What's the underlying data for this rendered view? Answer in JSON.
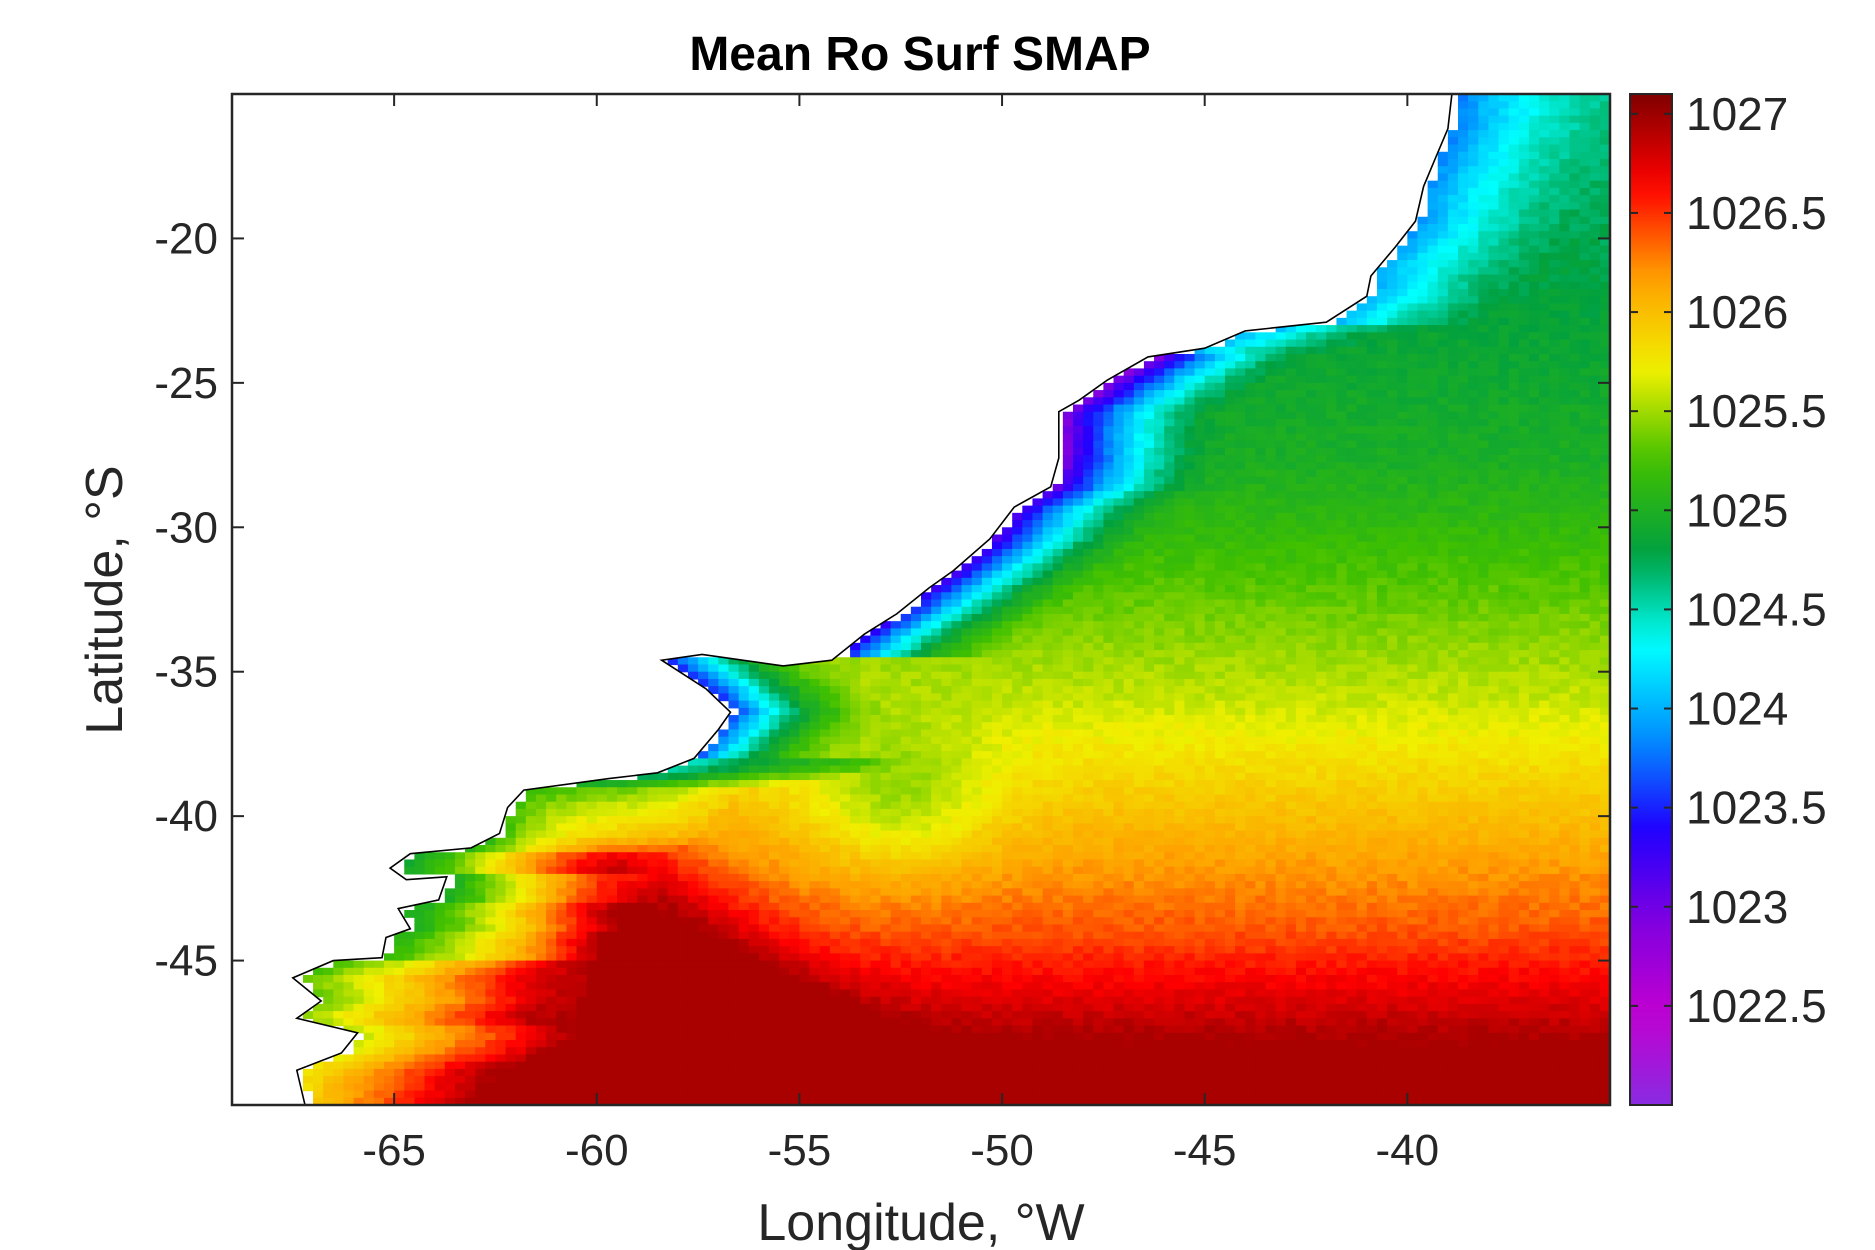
{
  "chart_data": {
    "type": "heatmap",
    "title": "Mean Ro Surf SMAP",
    "xlabel": "Longitude, °W",
    "ylabel": "Latitude, °S",
    "xlim": [
      -69,
      -35
    ],
    "ylim": [
      -50,
      -15
    ],
    "x_ticks": [
      -65,
      -60,
      -55,
      -50,
      -45,
      -40
    ],
    "x_tick_labels": [
      "-65",
      "-60",
      "-55",
      "-50",
      "-45",
      "-40"
    ],
    "y_ticks": [
      -20,
      -25,
      -30,
      -35,
      -40,
      -45
    ],
    "y_tick_labels": [
      "-20",
      "-25",
      "-30",
      "-35",
      "-40",
      "-45"
    ],
    "colorbar": {
      "min": 1022.0,
      "max": 1027.1,
      "ticks": [
        1027,
        1026.5,
        1026,
        1025.5,
        1025,
        1024.5,
        1024,
        1023.5,
        1023,
        1022.5
      ],
      "tick_labels": [
        "1027",
        "1026.5",
        "1026",
        "1025.5",
        "1025",
        "1024.5",
        "1024",
        "1023.5",
        "1023",
        "1022.5"
      ],
      "colormap": [
        "#8a2be2",
        "#c000d0",
        "#8000e0",
        "#2000ff",
        "#0090ff",
        "#00ffff",
        "#00a040",
        "#40c000",
        "#f0f000",
        "#ffa000",
        "#ff0000",
        "#800000"
      ],
      "placement": "right"
    },
    "field_description_values": {
      "shelf_low_density_min": 1022.3,
      "offshore_north_value": 1024.6,
      "central_gyre_value": 1025.0,
      "subtropical_yellow_band": 1025.6,
      "southern_red_region": 1026.6,
      "malvinas_core_max": 1026.9
    },
    "coastline_color": "#000000",
    "grid": false
  }
}
